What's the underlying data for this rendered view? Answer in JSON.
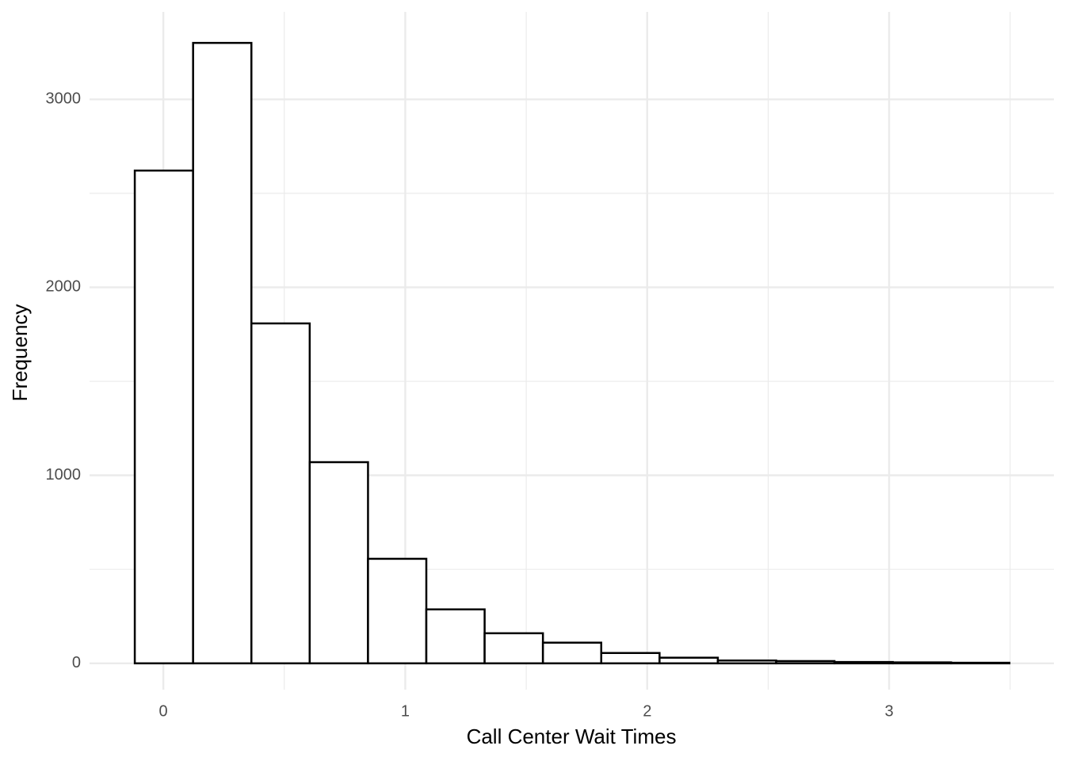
{
  "chart_data": {
    "type": "histogram",
    "x_label": "Call Center Wait Times",
    "y_label": "Frequency",
    "bins": [
      -0.118,
      0.123,
      0.364,
      0.605,
      0.846,
      1.087,
      1.328,
      1.569,
      1.81,
      2.051,
      2.292,
      2.533,
      2.774,
      3.015,
      3.256,
      3.497
    ],
    "counts": [
      2621,
      3300,
      1808,
      1070,
      556,
      287,
      160,
      110,
      55,
      30,
      15,
      12,
      7,
      5,
      3
    ],
    "fill": "#ffffff",
    "edgecolor": "#000000",
    "xlim": [
      -0.305,
      3.681
    ],
    "ylim": [
      -140,
      3465
    ],
    "xticks": [
      0,
      1,
      2,
      3
    ],
    "yticks": [
      0,
      1000,
      2000,
      3000
    ],
    "x_minor_grid": [
      0.5,
      1.5,
      2.5,
      3.5
    ],
    "y_minor_grid": [
      500,
      1500,
      2500
    ],
    "grid": true
  }
}
